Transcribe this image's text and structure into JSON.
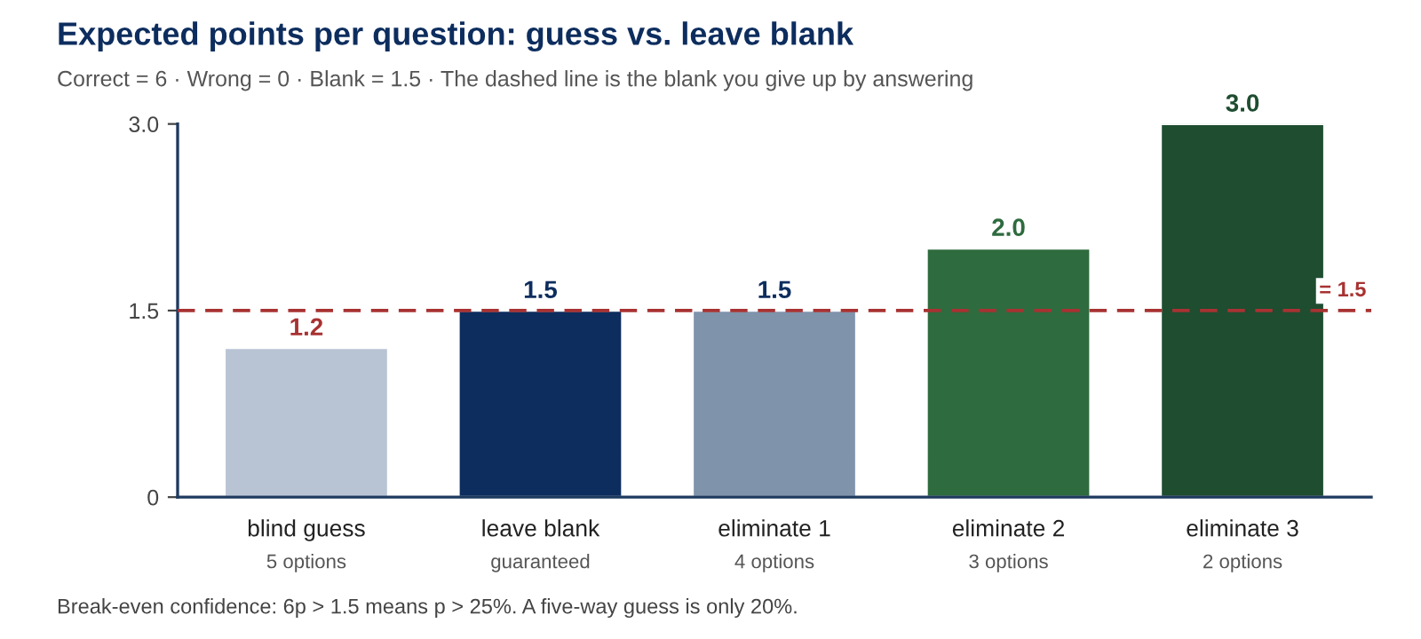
{
  "chart_data": {
    "type": "bar",
    "title": "Expected points per question: guess vs. leave blank",
    "subtitle": "Correct = 6 · Wrong = 0 · Blank = 1.5 · The dashed line is the blank you give up by answering",
    "categories": [
      "blind guess\n5 options",
      "leave blank\nguaranteed",
      "eliminate 1\n4 options",
      "eliminate 2\n3 options",
      "eliminate 3\n2 options"
    ],
    "values": [
      1.2,
      1.5,
      1.5,
      2.0,
      3.0
    ],
    "value_labels": [
      "1.2",
      "1.5",
      "1.5",
      "2.0",
      "3.0"
    ],
    "colors": [
      "#b8c4d4",
      "#0d2d5e",
      "#7f93ab",
      "#2e6b3e",
      "#1e4d30"
    ],
    "ylim": [
      0,
      3.0
    ],
    "yticks": [
      0,
      {
        "value": 1.5,
        "label": "1.5"
      },
      {
        "value": 3.0,
        "label": "3.0"
      }
    ],
    "ref_lines": [
      {
        "axis": "y",
        "value": 1.5,
        "label": "= 1.5",
        "color": "#a83232",
        "line_style": "dashed"
      }
    ],
    "grid": false,
    "annotations": [
      "Break-even confidence: 6p > 1.5 means p > 25%. A five-way guess is only 20%."
    ]
  }
}
